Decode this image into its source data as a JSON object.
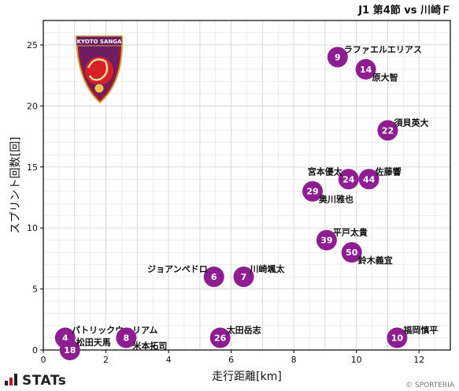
{
  "header": {
    "title": "J1 第4節 vs 川崎Ｆ"
  },
  "footer": {
    "brand": "STATs",
    "credit": "© SPORTERIA"
  },
  "colors": {
    "bubble": "#8d1d91",
    "grid": "#d3d3d3",
    "axis": "#000000"
  },
  "logo": {
    "text": "KYOTO SANGA",
    "icon": "kyoto-sanga-emblem"
  },
  "chart_data": {
    "type": "scatter",
    "xlabel": "走行距離[km]",
    "ylabel": "スプリント回数[回]",
    "xlim": [
      0,
      13
    ],
    "ylim": [
      0,
      27
    ],
    "xticks": [
      0,
      2,
      4,
      6,
      8,
      10,
      12
    ],
    "yticks": [
      0,
      5,
      10,
      15,
      20,
      25
    ],
    "grid": true,
    "points": [
      {
        "num": "9",
        "name": "ラファエルエリアス",
        "x": 9.4,
        "y": 24,
        "label_pos": "right-top"
      },
      {
        "num": "14",
        "name": "原大智",
        "x": 10.3,
        "y": 23,
        "label_pos": "right-bottom"
      },
      {
        "num": "22",
        "name": "須貝英大",
        "x": 11.0,
        "y": 18,
        "label_pos": "right-top"
      },
      {
        "num": "24",
        "name": "宮本優太",
        "x": 9.75,
        "y": 14,
        "label_pos": "left-top"
      },
      {
        "num": "44",
        "name": "佐藤響",
        "x": 10.4,
        "y": 14,
        "label_pos": "right-top"
      },
      {
        "num": "29",
        "name": "奥川雅也",
        "x": 8.6,
        "y": 13,
        "label_pos": "right-bottom"
      },
      {
        "num": "39",
        "name": "平戸太貴",
        "x": 9.05,
        "y": 9,
        "label_pos": "right-top"
      },
      {
        "num": "50",
        "name": "鈴木義宜",
        "x": 9.85,
        "y": 8,
        "label_pos": "right-bottom"
      },
      {
        "num": "6",
        "name": "ジョアンペドロ",
        "x": 5.45,
        "y": 6,
        "label_pos": "left-top"
      },
      {
        "num": "7",
        "name": "川崎颯太",
        "x": 6.4,
        "y": 6,
        "label_pos": "right-top"
      },
      {
        "num": "4",
        "name": "パトリックウィリアム",
        "x": 0.7,
        "y": 1,
        "label_pos": "right-top"
      },
      {
        "num": "18",
        "name": "松田天馬",
        "x": 0.85,
        "y": 0,
        "label_pos": "right-top"
      },
      {
        "num": "8",
        "name": "米本拓司",
        "x": 2.65,
        "y": 1,
        "label_pos": "right-bottom"
      },
      {
        "num": "26",
        "name": "太田岳志",
        "x": 5.65,
        "y": 1,
        "label_pos": "right-top"
      },
      {
        "num": "10",
        "name": "福岡慎平",
        "x": 11.3,
        "y": 1,
        "label_pos": "right-top"
      }
    ]
  }
}
